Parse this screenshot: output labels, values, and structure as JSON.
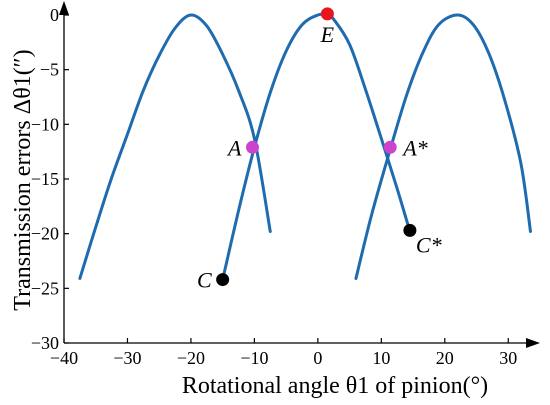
{
  "chart_data": {
    "type": "line",
    "title": "",
    "xlabel": "Rotational angle θ1 of pinion(°)",
    "ylabel": "Transmission errors Δθ1(″)",
    "xlim": [
      -40,
      35
    ],
    "ylim": [
      -30,
      0
    ],
    "xticks": [
      -40,
      -30,
      -20,
      -10,
      0,
      10,
      20,
      30
    ],
    "yticks": [
      0,
      -5,
      -10,
      -15,
      -20,
      -25,
      -30
    ],
    "xtick_labels": [
      "−40",
      "−30",
      "−20",
      "−10",
      "0",
      "10",
      "20",
      "30"
    ],
    "ytick_labels": [
      "0",
      "−5",
      "−10",
      "−15",
      "−20",
      "−25",
      "−30"
    ],
    "grid": false,
    "colors": {
      "curve": "#1f6bb0",
      "point_A": "#cc44cc",
      "point_E": "#e8141e",
      "point_C": "#000000"
    },
    "series": [
      {
        "peak_x": -20,
        "x": [
          -37.5,
          -35,
          -32.5,
          -30,
          -27.5,
          -25,
          -22.5,
          -20,
          -17.5,
          -15,
          -12.5,
          -10,
          -7.5
        ],
        "y": [
          -24.1,
          -19.4,
          -14.9,
          -10.9,
          -6.9,
          -3.7,
          -1.2,
          0,
          -1.0,
          -3.6,
          -6.9,
          -11.3,
          -19.8
        ]
      },
      {
        "peak_x": 0,
        "x": [
          -15,
          -12.5,
          -10,
          -7.5,
          -5,
          -2.5,
          0,
          1.5,
          2.5,
          5,
          7.5,
          10,
          12.5,
          14.5
        ],
        "y": [
          -24.2,
          -17.9,
          -12.1,
          -7.1,
          -3.3,
          -0.9,
          0,
          0,
          -0.4,
          -2.7,
          -6.8,
          -11.3,
          -15.9,
          -19.8
        ]
      },
      {
        "peak_x": 22,
        "x": [
          6,
          8.5,
          11.5,
          14,
          16.5,
          19,
          22,
          24.5,
          27,
          29.5,
          32,
          33.5
        ],
        "y": [
          -24.1,
          -18.2,
          -12.1,
          -7.3,
          -3.5,
          -0.9,
          0,
          -0.9,
          -3.6,
          -7.9,
          -13.6,
          -19.8
        ]
      }
    ],
    "points": [
      {
        "label": "A",
        "x": -10.3,
        "y": -12.1,
        "color": "#cc44cc",
        "label_side": "left"
      },
      {
        "label": "A*",
        "x": 11.4,
        "y": -12.1,
        "color": "#cc44cc",
        "label_side": "right"
      },
      {
        "label": "E",
        "x": 1.5,
        "y": 0.1,
        "color": "#e8141e",
        "label_side": "below"
      },
      {
        "label": "C",
        "x": -15.0,
        "y": -24.2,
        "color": "#000000",
        "label_side": "left"
      },
      {
        "label": "C*",
        "x": 14.5,
        "y": -19.7,
        "color": "#000000",
        "label_side": "below-right"
      }
    ]
  }
}
